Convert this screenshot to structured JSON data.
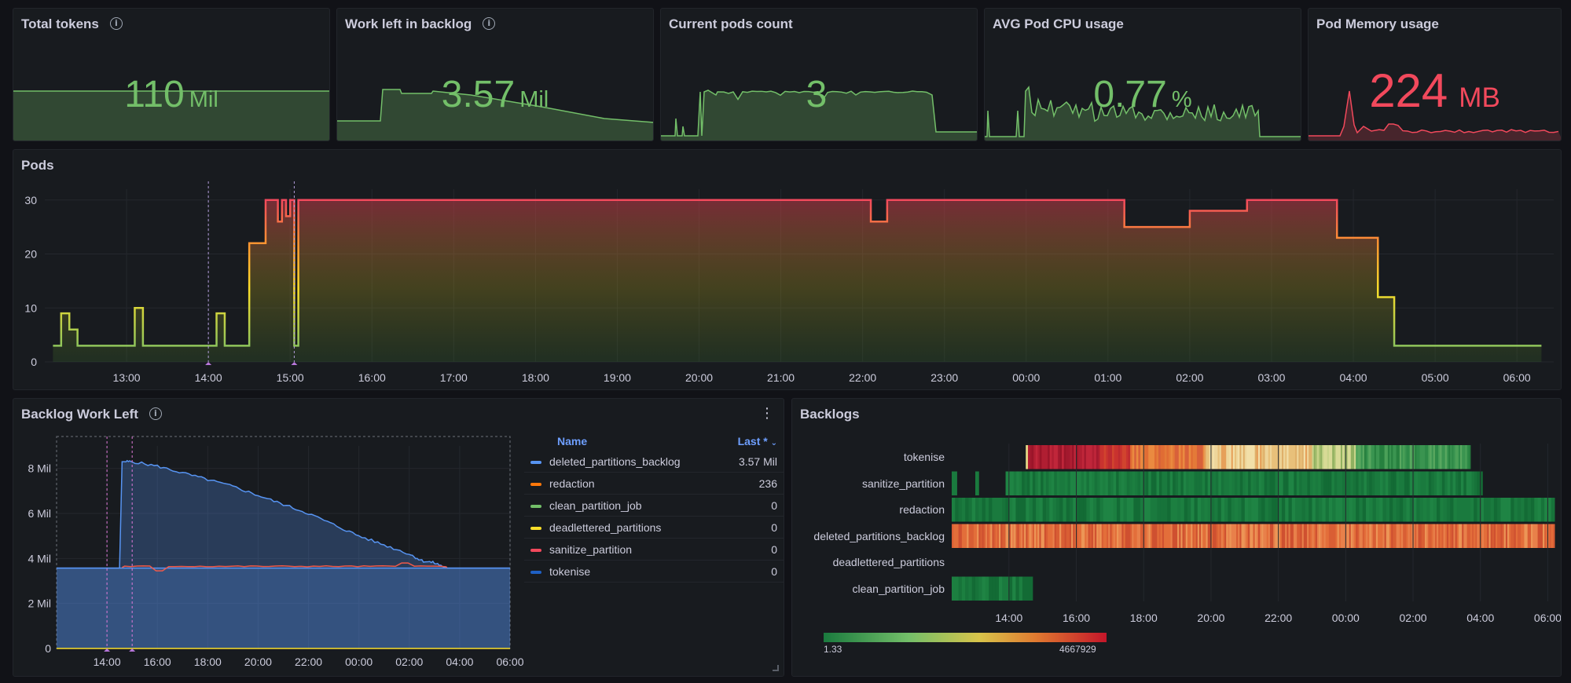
{
  "stats": [
    {
      "title": "Total tokens",
      "has_info": true,
      "value": "110",
      "unit": "Mil",
      "color": "#73bf69"
    },
    {
      "title": "Work left in backlog",
      "has_info": true,
      "value": "3.57",
      "unit": "Mil",
      "color": "#73bf69"
    },
    {
      "title": "Current pods count",
      "has_info": false,
      "value": "3",
      "unit": "",
      "color": "#73bf69"
    },
    {
      "title": "AVG Pod CPU usage",
      "has_info": false,
      "value": "0.77",
      "unit": "%",
      "color": "#73bf69"
    },
    {
      "title": "Pod Memory usage",
      "has_info": false,
      "value": "224",
      "unit": "MB",
      "color": "#f2495c"
    }
  ],
  "pods_panel": {
    "title": "Pods"
  },
  "backlog_panel": {
    "title": "Backlog Work Left",
    "legend_name_header": "Name",
    "legend_last_header": "Last *"
  },
  "backlogs_panel": {
    "title": "Backlogs",
    "scale_min": "1.33",
    "scale_max": "4667929"
  },
  "chart_data": [
    {
      "type": "line",
      "title": "Pods",
      "x_ticks": [
        "13:00",
        "14:00",
        "15:00",
        "16:00",
        "17:00",
        "18:00",
        "19:00",
        "20:00",
        "21:00",
        "22:00",
        "23:00",
        "00:00",
        "01:00",
        "02:00",
        "03:00",
        "04:00",
        "05:00",
        "06:00"
      ],
      "y_ticks": [
        0,
        10,
        20,
        30
      ],
      "ylim": [
        0,
        32
      ],
      "x": [
        12.1,
        12.2,
        12.3,
        12.4,
        12.5,
        12.9,
        13.1,
        13.2,
        13.3,
        13.9,
        14.1,
        14.2,
        14.3,
        14.5,
        14.7,
        14.8,
        14.85,
        14.9,
        14.95,
        15.0,
        15.05,
        15.1,
        15.15,
        15.2,
        15.4,
        15.6,
        16.0,
        16.5,
        18.0,
        21.0,
        21.9,
        22.1,
        22.3,
        22.6,
        23.5,
        24.3,
        25.0,
        25.2,
        25.7,
        26.0,
        26.7,
        27.5,
        27.8,
        28.0,
        28.3,
        28.5,
        28.7,
        28.9,
        29.5,
        30.3
      ],
      "y": [
        3,
        9,
        6,
        3,
        3,
        3,
        10,
        3,
        3,
        3,
        9,
        3,
        3,
        22,
        30,
        30,
        26,
        30,
        27,
        30,
        3,
        30,
        30,
        30,
        30,
        30,
        30,
        30,
        30,
        30,
        30,
        26,
        30,
        30,
        30,
        30,
        30,
        25,
        25,
        28,
        30,
        30,
        23,
        23,
        12,
        3,
        3,
        3,
        3,
        3
      ],
      "color_scale": "green-yellow-red by value"
    },
    {
      "type": "area",
      "title": "Backlog Work Left",
      "x_ticks": [
        "14:00",
        "16:00",
        "18:00",
        "20:00",
        "22:00",
        "00:00",
        "02:00",
        "04:00",
        "06:00"
      ],
      "y_ticks": [
        "0",
        "2 Mil",
        "4 Mil",
        "6 Mil",
        "8 Mil"
      ],
      "ylim": [
        0,
        9
      ],
      "series": [
        {
          "name": "deleted_partitions_backlog",
          "last": "3.57 Mil",
          "color": "#5794f2"
        },
        {
          "name": "redaction",
          "last": "236",
          "color": "#ff780a"
        },
        {
          "name": "clean_partition_job",
          "last": "0",
          "color": "#73bf69"
        },
        {
          "name": "deadlettered_partitions",
          "last": "0",
          "color": "#fade2a"
        },
        {
          "name": "sanitize_partition",
          "last": "0",
          "color": "#f2495c"
        },
        {
          "name": "tokenise",
          "last": "0",
          "color": "#1f60c4"
        }
      ],
      "tokenise_x": [
        12.0,
        14.5,
        14.6,
        15.0,
        16.0,
        17.0,
        18.0,
        19.0,
        20.0,
        21.0,
        22.0,
        23.0,
        24.0,
        25.0,
        26.0,
        26.5,
        27.0,
        27.5,
        28.0,
        30.0
      ],
      "tokenise_y": [
        3.57,
        3.57,
        8.3,
        8.3,
        8.1,
        7.8,
        7.5,
        7.2,
        6.8,
        6.4,
        6.0,
        5.5,
        5.0,
        4.6,
        4.2,
        3.9,
        3.8,
        3.57,
        3.57,
        3.57
      ],
      "deleted_partitions_backlog_y": 3.57
    },
    {
      "type": "heatmap",
      "title": "Backlogs",
      "rows": [
        "tokenise",
        "sanitize_partition",
        "redaction",
        "deleted_partitions_backlog",
        "deadlettered_partitions",
        "clean_partition_job"
      ],
      "x_ticks": [
        "14:00",
        "16:00",
        "18:00",
        "20:00",
        "22:00",
        "00:00",
        "02:00",
        "04:00",
        "06:00"
      ],
      "scale_min": 1.33,
      "scale_max": 4667929
    }
  ]
}
